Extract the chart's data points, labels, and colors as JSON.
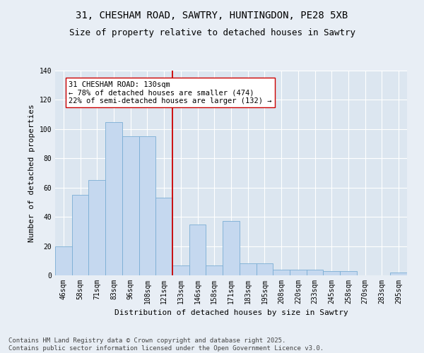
{
  "title_line1": "31, CHESHAM ROAD, SAWTRY, HUNTINGDON, PE28 5XB",
  "title_line2": "Size of property relative to detached houses in Sawtry",
  "xlabel": "Distribution of detached houses by size in Sawtry",
  "ylabel": "Number of detached properties",
  "bar_labels": [
    "46sqm",
    "58sqm",
    "71sqm",
    "83sqm",
    "96sqm",
    "108sqm",
    "121sqm",
    "133sqm",
    "146sqm",
    "158sqm",
    "171sqm",
    "183sqm",
    "195sqm",
    "208sqm",
    "220sqm",
    "233sqm",
    "245sqm",
    "258sqm",
    "270sqm",
    "283sqm",
    "295sqm"
  ],
  "bar_values": [
    20,
    55,
    65,
    105,
    95,
    95,
    53,
    7,
    35,
    7,
    37,
    8,
    8,
    4,
    4,
    4,
    3,
    3,
    0,
    0,
    2
  ],
  "bar_color": "#c5d8ef",
  "bar_edgecolor": "#7aadd4",
  "vline_color": "#cc0000",
  "annotation_text": "31 CHESHAM ROAD: 130sqm\n← 78% of detached houses are smaller (474)\n22% of semi-detached houses are larger (132) →",
  "annotation_box_color": "#ffffff",
  "annotation_box_edgecolor": "#cc0000",
  "ylim": [
    0,
    140
  ],
  "yticks": [
    0,
    20,
    40,
    60,
    80,
    100,
    120,
    140
  ],
  "bg_color": "#e8eef5",
  "plot_bg_color": "#dce6f0",
  "footer_text": "Contains HM Land Registry data © Crown copyright and database right 2025.\nContains public sector information licensed under the Open Government Licence v3.0.",
  "title_fontsize": 10,
  "subtitle_fontsize": 9,
  "tick_fontsize": 7,
  "ylabel_fontsize": 8,
  "xlabel_fontsize": 8,
  "annotation_fontsize": 7.5,
  "footer_fontsize": 6.5
}
